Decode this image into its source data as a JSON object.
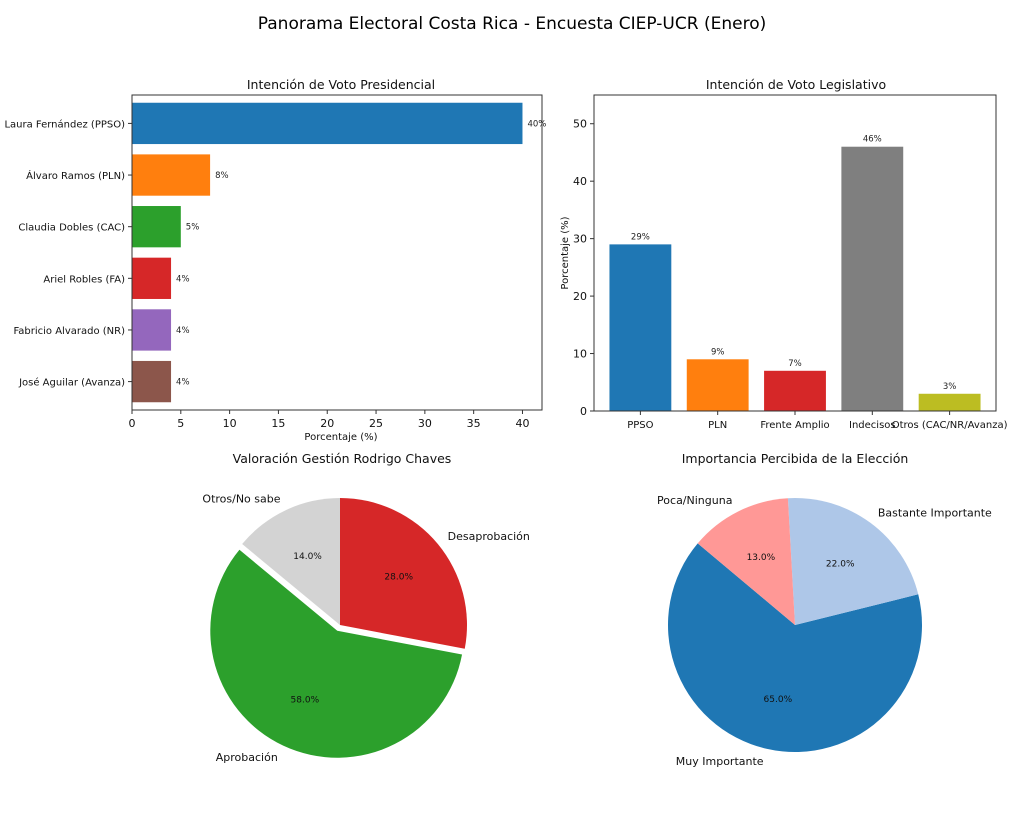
{
  "figure": {
    "title": "Panorama Electoral Costa Rica - Encuesta CIEP-UCR (Enero)"
  },
  "chart_data": [
    {
      "type": "bar",
      "orientation": "horizontal",
      "title": "Intención de Voto Presidencial",
      "xlabel": "Porcentaje (%)",
      "ylabel": "",
      "categories": [
        "Laura Fernández (PPSO)",
        "Álvaro Ramos (PLN)",
        "Claudia Dobles (CAC)",
        "Ariel Robles (FA)",
        "Fabricio Alvarado (NR)",
        "José Aguilar (Avanza)"
      ],
      "values": [
        40,
        8,
        5,
        4,
        4,
        4
      ],
      "data_labels": [
        "40%",
        "8%",
        "5%",
        "4%",
        "4%",
        "4%"
      ],
      "colors": [
        "#1f77b4",
        "#ff7f0e",
        "#2ca02c",
        "#d62728",
        "#9467bd",
        "#8c564b"
      ],
      "xlim": [
        0,
        42
      ],
      "xticks": [
        0,
        5,
        10,
        15,
        20,
        25,
        30,
        35,
        40
      ],
      "grid": false
    },
    {
      "type": "bar",
      "orientation": "vertical",
      "title": "Intención de Voto Legislativo",
      "xlabel": "",
      "ylabel": "Porcentaje (%)",
      "categories": [
        "PPSO",
        "PLN",
        "Frente Amplio",
        "Indecisos",
        "Otros (CAC/NR/Avanza)"
      ],
      "values": [
        29,
        9,
        7,
        46,
        3
      ],
      "data_labels": [
        "29%",
        "9%",
        "7%",
        "46%",
        "3%"
      ],
      "colors": [
        "#1f77b4",
        "#ff7f0e",
        "#d62728",
        "#7f7f7f",
        "#bcbd22"
      ],
      "ylim": [
        0,
        55
      ],
      "yticks": [
        0,
        10,
        20,
        30,
        40,
        50
      ],
      "grid": false
    },
    {
      "type": "pie",
      "title": "Valoración Gestión Rodrigo Chaves",
      "labels": [
        "Desaprobación",
        "Aprobación",
        "Otros/No sabe"
      ],
      "values": [
        28,
        58,
        14
      ],
      "pct_labels": [
        "28.0%",
        "58.0%",
        "14.0%"
      ],
      "colors": [
        "#d62728",
        "#2ca02c",
        "#d3d3d3"
      ],
      "start_angle_deg": 90,
      "direction": "clockwise",
      "explode": [
        0,
        0.05,
        0
      ]
    },
    {
      "type": "pie",
      "title": "Importancia Percibida de la Elección",
      "labels": [
        "Muy Importante",
        "Bastante Importante",
        "Poca/Ninguna"
      ],
      "values": [
        65,
        22,
        13
      ],
      "pct_labels": [
        "65.0%",
        "22.0%",
        "13.0%"
      ],
      "colors": [
        "#1f77b4",
        "#aec7e8",
        "#ff9896"
      ],
      "start_angle_deg": 140,
      "direction": "counterclockwise",
      "explode": [
        0,
        0,
        0
      ]
    }
  ]
}
